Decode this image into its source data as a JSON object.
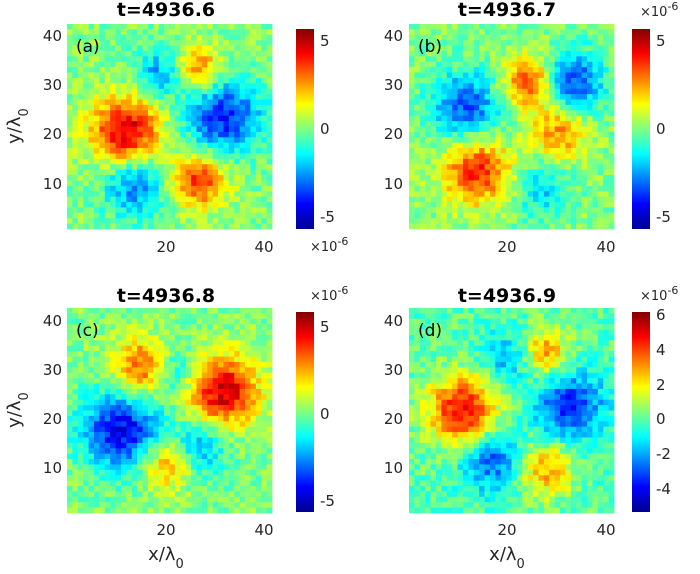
{
  "chart_data": [
    {
      "type": "heatmap",
      "title": "t=4936.6",
      "panel_label": "(a)",
      "x_ticks": [
        "20",
        "40"
      ],
      "y_ticks": [
        "10",
        "20",
        "30",
        "40"
      ],
      "xlabel": "",
      "ylabel": "y/λ0",
      "xlim": [
        0,
        42
      ],
      "ylim": [
        0,
        42
      ],
      "colorbar": {
        "ticks": [
          "5",
          "0",
          "-5"
        ],
        "tick_values": [
          5,
          0,
          -5
        ],
        "range": [
          -5.8,
          5.8
        ],
        "multiplier": "×10-6"
      },
      "blobs": [
        {
          "x": 12,
          "y": 20,
          "v": 5.0,
          "s": 5.0
        },
        {
          "x": 27,
          "y": 10,
          "v": 4.0,
          "s": 4.0
        },
        {
          "x": 27,
          "y": 33,
          "v": 3.0,
          "s": 3.5
        },
        {
          "x": 32,
          "y": 23,
          "v": -4.0,
          "s": 5.5
        },
        {
          "x": 14,
          "y": 9,
          "v": -3.0,
          "s": 4.5
        },
        {
          "x": 19,
          "y": 32,
          "v": -2.5,
          "s": 3.5
        }
      ]
    },
    {
      "type": "heatmap",
      "title": "t=4936.7",
      "panel_label": "(b)",
      "x_ticks": [
        "20",
        "40"
      ],
      "y_ticks": [
        "10",
        "20",
        "30",
        "40"
      ],
      "xlabel": "",
      "ylabel": "",
      "xlim": [
        0,
        42
      ],
      "ylim": [
        0,
        42
      ],
      "colorbar": {
        "ticks": [
          "5",
          "0",
          "-5"
        ],
        "tick_values": [
          5,
          0,
          -5
        ],
        "range": [
          -5.8,
          5.8
        ],
        "multiplier": "×10-6"
      },
      "blobs": [
        {
          "x": 14,
          "y": 12,
          "v": 4.0,
          "s": 5.0
        },
        {
          "x": 25,
          "y": 30,
          "v": 4.0,
          "s": 4.0
        },
        {
          "x": 31,
          "y": 20,
          "v": 3.0,
          "s": 4.0
        },
        {
          "x": 33,
          "y": 30,
          "v": -4.0,
          "s": 4.5
        },
        {
          "x": 12,
          "y": 25,
          "v": -3.5,
          "s": 5.0
        },
        {
          "x": 27,
          "y": 8,
          "v": -2.0,
          "s": 4.0
        }
      ]
    },
    {
      "type": "heatmap",
      "title": "t=4936.8",
      "panel_label": "(c)",
      "x_ticks": [
        "20",
        "40"
      ],
      "y_ticks": [
        "10",
        "20",
        "30",
        "40"
      ],
      "xlabel": "",
      "ylabel": "y/λ0",
      "xlim": [
        0,
        42
      ],
      "ylim": [
        0,
        42
      ],
      "colorbar": {
        "ticks": [
          "5",
          "0",
          "-5"
        ],
        "tick_values": [
          5,
          0,
          -5
        ],
        "range": [
          -5.8,
          5.8
        ],
        "multiplier": "×10-6"
      },
      "blobs": [
        {
          "x": 32,
          "y": 25,
          "v": 5.0,
          "s": 5.0
        },
        {
          "x": 15,
          "y": 30,
          "v": 3.5,
          "s": 4.0
        },
        {
          "x": 21,
          "y": 10,
          "v": 3.0,
          "s": 3.5
        },
        {
          "x": 11,
          "y": 17,
          "v": -4.5,
          "s": 5.5
        },
        {
          "x": 27,
          "y": 13,
          "v": -2.5,
          "s": 4.0
        },
        {
          "x": 22,
          "y": 29,
          "v": -2.0,
          "s": 3.0
        }
      ]
    },
    {
      "type": "heatmap",
      "title": "t=4936.9",
      "panel_label": "(d)",
      "x_ticks": [
        "20",
        "40"
      ],
      "y_ticks": [
        "10",
        "20",
        "30",
        "40"
      ],
      "xlabel": "",
      "ylabel": "",
      "xlim": [
        0,
        42
      ],
      "ylim": [
        0,
        42
      ],
      "colorbar": {
        "ticks": [
          "6",
          "4",
          "2",
          "0",
          "-2",
          "-4"
        ],
        "tick_values": [
          6,
          4,
          2,
          0,
          -2,
          -4
        ],
        "range": [
          -5.3,
          6.2
        ],
        "multiplier": "×10-6"
      },
      "blobs": [
        {
          "x": 11,
          "y": 21,
          "v": 5.0,
          "s": 5.0
        },
        {
          "x": 28,
          "y": 9,
          "v": 3.0,
          "s": 4.0
        },
        {
          "x": 28,
          "y": 33,
          "v": 3.0,
          "s": 3.5
        },
        {
          "x": 33,
          "y": 22,
          "v": -3.5,
          "s": 5.0
        },
        {
          "x": 17,
          "y": 11,
          "v": -3.0,
          "s": 4.5
        },
        {
          "x": 20,
          "y": 32,
          "v": -2.0,
          "s": 3.5
        }
      ]
    }
  ],
  "x_axis_label": "x/λ0"
}
